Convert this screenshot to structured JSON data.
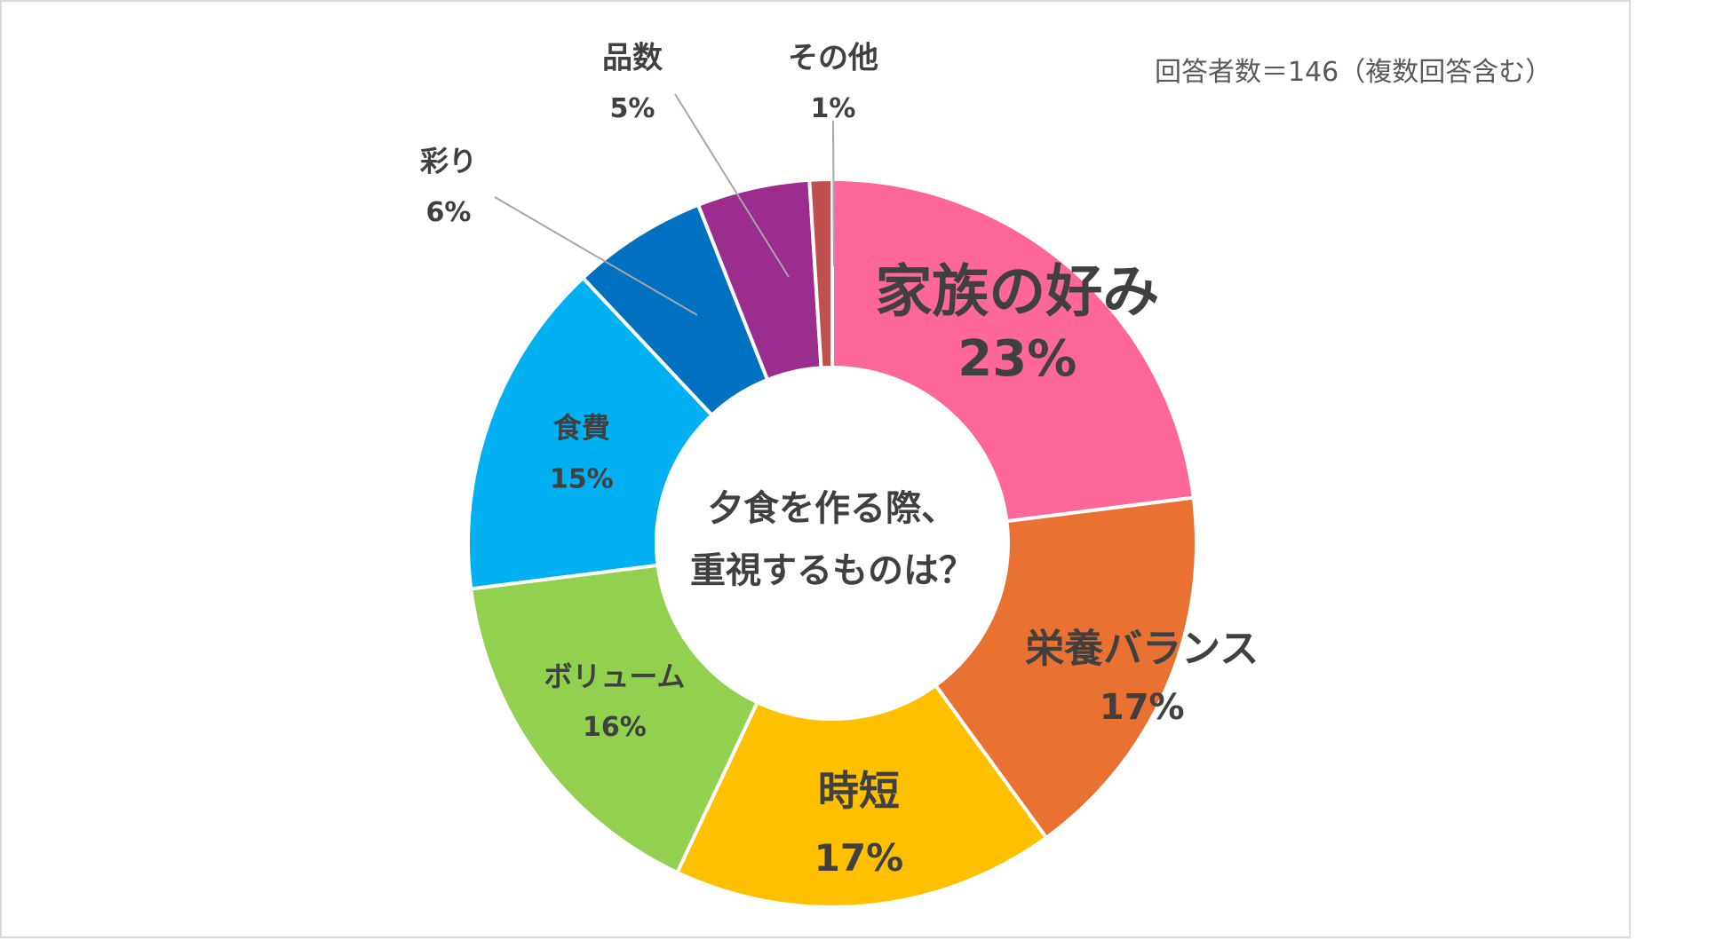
{
  "note": "回答者数＝146（複数回答含む）",
  "chart_data": {
    "type": "pie",
    "donut": true,
    "center_text": [
      "夕食を作る際、",
      "重視するものは？"
    ],
    "slices": [
      {
        "label": "家族の好み",
        "value": 23,
        "value_label": "23%",
        "color": "#FF6699"
      },
      {
        "label": "栄養バランス",
        "value": 17,
        "value_label": "17%",
        "color": "#E97132"
      },
      {
        "label": "時短",
        "value": 17,
        "value_label": "17%",
        "color": "#FFC000"
      },
      {
        "label": "ボリューム",
        "value": 16,
        "value_label": "16%",
        "color": "#92D050"
      },
      {
        "label": "食費",
        "value": 15,
        "value_label": "15%",
        "color": "#00B0F0"
      },
      {
        "label": "彩り",
        "value": 6,
        "value_label": "6%",
        "color": "#0070C0"
      },
      {
        "label": "品数",
        "value": 5,
        "value_label": "5%",
        "color": "#9B2D8E"
      },
      {
        "label": "その他",
        "value": 1,
        "value_label": "1%",
        "color": "#C0504D"
      }
    ],
    "start": "12 o'clock",
    "direction": "clockwise"
  }
}
